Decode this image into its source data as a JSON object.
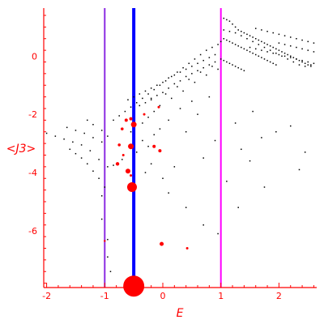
{
  "chart_data": {
    "type": "scatter",
    "title": "",
    "xlabel": "E",
    "ylabel": "<J3>",
    "xlim": [
      -2.05,
      2.65
    ],
    "ylim": [
      -7.95,
      1.65
    ],
    "xticks": [
      -2,
      -1,
      0,
      1,
      2
    ],
    "xtick_labels": [
      "-2",
      "-1",
      "0",
      "1",
      "2"
    ],
    "yticks": [
      -6,
      -4,
      -2,
      0
    ],
    "ytick_labels": [
      "-6",
      "-4",
      "-2",
      "0"
    ],
    "grid": false,
    "legend": "none",
    "colors": {
      "axis": "#ff0000",
      "background_points": "#000000",
      "highlight_points": "#ff0000",
      "blue_line": "#0000ff",
      "magenta_line": "#ff00ff",
      "purple_line": "#8a2be2"
    },
    "vertical_lines": [
      {
        "x": -0.5,
        "color": "#0000ff",
        "width": "thick"
      },
      {
        "x": -1.0,
        "color": "#8a2be2",
        "width": "thin"
      },
      {
        "x": 1.0,
        "color": "#ff00ff",
        "width": "thin"
      }
    ],
    "series": [
      {
        "role": "background",
        "color": "#000000",
        "points": [
          [
            -2.0,
            -2.65
          ],
          [
            -1.85,
            -2.75
          ],
          [
            -1.7,
            -2.85
          ],
          [
            -1.55,
            -2.95
          ],
          [
            -1.4,
            -3.05
          ],
          [
            -1.25,
            -3.25
          ],
          [
            -1.1,
            -3.55
          ],
          [
            -0.95,
            -3.8
          ],
          [
            -0.85,
            -3.75
          ],
          [
            -0.7,
            -3.55
          ],
          [
            -1.65,
            -2.45
          ],
          [
            -1.5,
            -2.55
          ],
          [
            -1.35,
            -2.65
          ],
          [
            -1.2,
            -2.8
          ],
          [
            -1.05,
            -2.95
          ],
          [
            -1.6,
            -3.2
          ],
          [
            -1.5,
            -3.35
          ],
          [
            -1.4,
            -3.5
          ],
          [
            -1.3,
            -3.7
          ],
          [
            -1.2,
            -3.95
          ],
          [
            -1.1,
            -4.2
          ],
          [
            -1.0,
            -4.5
          ],
          [
            -1.3,
            -2.2
          ],
          [
            -1.2,
            -2.35
          ],
          [
            -1.05,
            -2.55
          ],
          [
            -0.95,
            -2.75
          ],
          [
            -1.05,
            -4.8
          ],
          [
            -1.05,
            -5.6
          ],
          [
            -0.95,
            -6.3
          ],
          [
            -0.95,
            -6.9
          ],
          [
            -0.9,
            -7.4
          ],
          [
            -0.85,
            -2.2
          ],
          [
            -0.75,
            -2.05
          ],
          [
            -0.65,
            -1.9
          ],
          [
            -0.55,
            -1.75
          ],
          [
            -0.45,
            -1.6
          ],
          [
            -0.35,
            -1.45
          ],
          [
            -0.25,
            -1.3
          ],
          [
            -0.15,
            -1.15
          ],
          [
            -0.05,
            -1.0
          ],
          [
            0.05,
            -0.85
          ],
          [
            0.15,
            -0.7
          ],
          [
            0.25,
            -0.55
          ],
          [
            0.35,
            -0.4
          ],
          [
            0.45,
            -0.25
          ],
          [
            0.55,
            -0.1
          ],
          [
            0.65,
            0.05
          ],
          [
            0.75,
            0.2
          ],
          [
            0.85,
            0.3
          ],
          [
            0.95,
            0.4
          ],
          [
            -0.6,
            -1.5
          ],
          [
            -0.5,
            -1.4
          ],
          [
            -0.4,
            -1.3
          ],
          [
            -0.3,
            -1.2
          ],
          [
            -0.2,
            -1.1
          ],
          [
            -0.1,
            -1.0
          ],
          [
            0.0,
            -0.9
          ],
          [
            0.1,
            -0.75
          ],
          [
            0.2,
            -0.65
          ],
          [
            0.3,
            -0.55
          ],
          [
            0.4,
            -0.45
          ],
          [
            0.5,
            -0.35
          ],
          [
            0.6,
            -0.25
          ],
          [
            0.7,
            -0.15
          ],
          [
            0.8,
            -0.05
          ],
          [
            0.9,
            0.05
          ],
          [
            -0.2,
            -1.5
          ],
          [
            -0.1,
            -1.35
          ],
          [
            0.0,
            -1.25
          ],
          [
            0.1,
            -1.1
          ],
          [
            0.2,
            -0.95
          ],
          [
            0.3,
            -0.85
          ],
          [
            0.4,
            -0.7
          ],
          [
            0.5,
            -0.6
          ],
          [
            0.6,
            -0.5
          ],
          [
            0.7,
            -0.4
          ],
          [
            0.8,
            -0.3
          ],
          [
            0.9,
            -0.2
          ],
          [
            -0.4,
            -1.7
          ],
          [
            -0.3,
            -1.6
          ],
          [
            -0.2,
            -1.45
          ],
          [
            0.05,
            -1.3
          ],
          [
            0.25,
            -1.05
          ],
          [
            0.45,
            -0.8
          ],
          [
            0.65,
            -0.55
          ],
          [
            0.85,
            -0.35
          ],
          [
            -0.55,
            -2.6
          ],
          [
            -0.35,
            -2.3
          ],
          [
            -0.25,
            -2.1
          ],
          [
            -0.15,
            -1.9
          ],
          [
            -0.05,
            -1.7
          ],
          [
            0.15,
            -1.45
          ],
          [
            0.35,
            -1.2
          ],
          [
            0.55,
            -0.9
          ],
          [
            0.75,
            -0.65
          ],
          [
            0.95,
            -0.45
          ],
          [
            -0.45,
            -3.3
          ],
          [
            -0.35,
            -2.9
          ],
          [
            -0.25,
            -3.1
          ],
          [
            -0.15,
            -2.7
          ],
          [
            -0.05,
            -2.5
          ],
          [
            0.1,
            -2.2
          ],
          [
            0.3,
            -1.8
          ],
          [
            0.5,
            -1.55
          ],
          [
            -0.3,
            -4.0
          ],
          [
            -0.2,
            -3.7
          ],
          [
            0.0,
            -4.2
          ],
          [
            0.2,
            -3.8
          ],
          [
            0.4,
            -2.6
          ],
          [
            0.6,
            -2.0
          ],
          [
            0.8,
            -1.4
          ],
          [
            0.1,
            -4.7
          ],
          [
            0.4,
            -5.2
          ],
          [
            0.7,
            -5.8
          ],
          [
            0.95,
            -6.1
          ],
          [
            0.7,
            -3.5
          ],
          [
            0.9,
            -2.9
          ],
          [
            1.0,
            0.5
          ],
          [
            1.05,
            1.3
          ],
          [
            1.1,
            1.25
          ],
          [
            1.15,
            1.2
          ],
          [
            1.2,
            1.1
          ],
          [
            1.25,
            1.0
          ],
          [
            1.3,
            0.9
          ],
          [
            1.35,
            0.85
          ],
          [
            1.4,
            0.8
          ],
          [
            1.45,
            0.75
          ],
          [
            1.5,
            0.7
          ],
          [
            1.55,
            0.65
          ],
          [
            1.6,
            0.6
          ],
          [
            1.65,
            0.55
          ],
          [
            1.7,
            0.5
          ],
          [
            1.75,
            0.45
          ],
          [
            1.8,
            0.4
          ],
          [
            1.85,
            0.35
          ],
          [
            1.9,
            0.3
          ],
          [
            1.95,
            0.25
          ],
          [
            2.0,
            0.2
          ],
          [
            2.05,
            0.15
          ],
          [
            2.1,
            0.1
          ],
          [
            2.15,
            0.05
          ],
          [
            2.2,
            0.0
          ],
          [
            2.25,
            -0.05
          ],
          [
            2.3,
            -0.1
          ],
          [
            2.35,
            -0.15
          ],
          [
            2.4,
            -0.2
          ],
          [
            2.45,
            -0.25
          ],
          [
            2.5,
            -0.3
          ],
          [
            2.55,
            -0.35
          ],
          [
            1.05,
            0.6
          ],
          [
            1.1,
            0.55
          ],
          [
            1.15,
            0.5
          ],
          [
            1.2,
            0.45
          ],
          [
            1.25,
            0.4
          ],
          [
            1.3,
            0.35
          ],
          [
            1.35,
            0.3
          ],
          [
            1.4,
            0.25
          ],
          [
            1.45,
            0.2
          ],
          [
            1.5,
            0.15
          ],
          [
            1.55,
            0.1
          ],
          [
            1.6,
            0.05
          ],
          [
            1.65,
            0.0
          ],
          [
            1.7,
            -0.05
          ],
          [
            1.75,
            -0.1
          ],
          [
            1.8,
            -0.15
          ],
          [
            1.85,
            -0.2
          ],
          [
            1.9,
            -0.25
          ],
          [
            1.95,
            -0.3
          ],
          [
            1.0,
            -0.1
          ],
          [
            1.05,
            -0.15
          ],
          [
            1.1,
            -0.2
          ],
          [
            1.15,
            -0.25
          ],
          [
            1.2,
            -0.3
          ],
          [
            1.25,
            -0.35
          ],
          [
            1.3,
            -0.4
          ],
          [
            1.35,
            -0.45
          ],
          [
            1.4,
            -0.5
          ],
          [
            1.05,
            0.9
          ],
          [
            1.15,
            0.85
          ],
          [
            1.25,
            0.8
          ],
          [
            1.35,
            0.7
          ],
          [
            1.45,
            0.6
          ],
          [
            1.55,
            0.5
          ],
          [
            1.65,
            0.4
          ],
          [
            1.75,
            0.3
          ],
          [
            1.85,
            0.2
          ],
          [
            1.95,
            0.1
          ],
          [
            2.05,
            0.0
          ],
          [
            2.15,
            -0.1
          ],
          [
            2.25,
            -0.2
          ],
          [
            2.35,
            -0.3
          ],
          [
            2.45,
            -0.35
          ],
          [
            2.55,
            -0.3
          ],
          [
            1.6,
            0.95
          ],
          [
            1.7,
            0.9
          ],
          [
            1.8,
            0.85
          ],
          [
            1.9,
            0.8
          ],
          [
            2.0,
            0.75
          ],
          [
            2.1,
            0.7
          ],
          [
            2.2,
            0.65
          ],
          [
            2.3,
            0.6
          ],
          [
            2.4,
            0.55
          ],
          [
            2.5,
            0.5
          ],
          [
            2.6,
            0.45
          ],
          [
            1.5,
            0.3
          ],
          [
            1.6,
            0.25
          ],
          [
            1.7,
            0.2
          ],
          [
            1.8,
            0.15
          ],
          [
            1.9,
            0.1
          ],
          [
            2.0,
            0.05
          ],
          [
            2.1,
            0.0
          ],
          [
            2.2,
            -0.05
          ],
          [
            2.3,
            -0.1
          ],
          [
            2.4,
            -0.15
          ],
          [
            2.5,
            -0.2
          ],
          [
            2.6,
            -0.25
          ],
          [
            2.0,
            0.45
          ],
          [
            2.1,
            0.4
          ],
          [
            2.2,
            0.35
          ],
          [
            2.3,
            0.3
          ],
          [
            2.4,
            0.25
          ],
          [
            2.5,
            0.2
          ],
          [
            2.6,
            0.15
          ],
          [
            1.25,
            -2.3
          ],
          [
            1.55,
            -1.9
          ],
          [
            1.35,
            -3.2
          ],
          [
            1.7,
            -2.8
          ],
          [
            1.95,
            -2.6
          ],
          [
            2.2,
            -2.4
          ],
          [
            2.45,
            -3.3
          ],
          [
            2.35,
            -3.9
          ],
          [
            1.75,
            -4.5
          ],
          [
            1.3,
            -5.2
          ],
          [
            1.1,
            -4.3
          ],
          [
            1.5,
            -3.6
          ]
        ]
      },
      {
        "role": "highlight",
        "color": "#ff0000",
        "points": [
          {
            "x": -0.5,
            "y": -7.9,
            "size": 13
          },
          {
            "x": -0.53,
            "y": -4.5,
            "size": 6
          },
          {
            "x": -0.6,
            "y": -3.95,
            "size": 3
          },
          {
            "x": -0.55,
            "y": -3.1,
            "size": 3.5
          },
          {
            "x": -0.5,
            "y": -2.35,
            "size": 3.5
          },
          {
            "x": -0.63,
            "y": -2.2,
            "size": 2
          },
          {
            "x": -0.55,
            "y": -2.15,
            "size": 2
          },
          {
            "x": -0.7,
            "y": -2.5,
            "size": 1.8
          },
          {
            "x": -0.75,
            "y": -3.05,
            "size": 1.8
          },
          {
            "x": -0.68,
            "y": -3.4,
            "size": 1.5
          },
          {
            "x": -0.78,
            "y": -3.7,
            "size": 2.2
          },
          {
            "x": -0.55,
            "y": -4.1,
            "size": 1.5
          },
          {
            "x": -0.15,
            "y": -3.1,
            "size": 2
          },
          {
            "x": -0.05,
            "y": -3.25,
            "size": 2
          },
          {
            "x": -0.07,
            "y": -1.75,
            "size": 1.5
          },
          {
            "x": -0.32,
            "y": -2.0,
            "size": 1.5
          },
          {
            "x": -0.02,
            "y": -6.45,
            "size": 2.5
          },
          {
            "x": 0.42,
            "y": -6.6,
            "size": 1.5
          },
          {
            "x": -1.0,
            "y": -6.35,
            "size": 1.2
          }
        ]
      }
    ]
  }
}
